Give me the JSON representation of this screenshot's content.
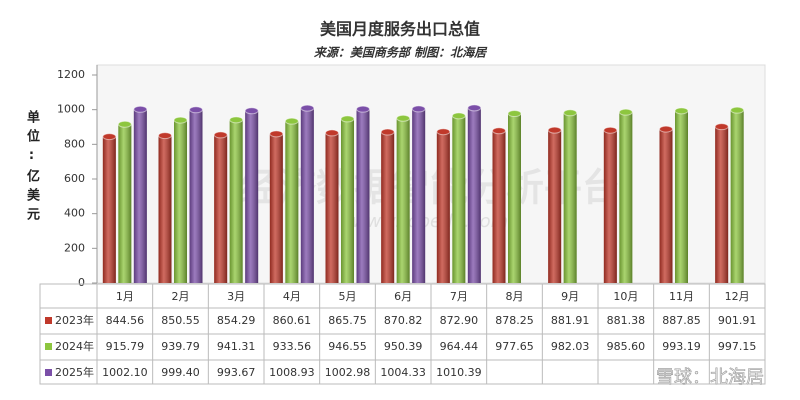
{
  "chart_data": {
    "type": "bar",
    "title": "美国月度服务出口总值",
    "subtitle": "来源：美国商务部 制图：北海居",
    "y_label": "单位:亿美元",
    "watermarks": [
      "经济数据智能分析平台",
      "www.topedb.com",
      "雪球：北海居"
    ],
    "categories": [
      "1月",
      "2月",
      "3月",
      "4月",
      "5月",
      "6月",
      "7月",
      "8月",
      "9月",
      "10月",
      "11月",
      "12月"
    ],
    "series": [
      {
        "name": "2023年",
        "color": "#c0392b",
        "values": [
          844.56,
          850.55,
          854.29,
          860.61,
          865.75,
          870.82,
          872.9,
          878.25,
          881.91,
          881.38,
          887.85,
          901.91
        ],
        "value_labels": [
          "844.56",
          "850.55",
          "854.29",
          "860.61",
          "865.75",
          "870.82",
          "872.90",
          "878.25",
          "881.91",
          "881.38",
          "887.85",
          "901.91"
        ]
      },
      {
        "name": "2024年",
        "color": "#8dc63f",
        "values": [
          915.79,
          939.79,
          941.31,
          933.56,
          946.55,
          950.39,
          964.44,
          977.65,
          982.03,
          985.6,
          993.19,
          997.15
        ],
        "value_labels": [
          "915.79",
          "939.79",
          "941.31",
          "933.56",
          "946.55",
          "950.39",
          "964.44",
          "977.65",
          "982.03",
          "985.60",
          "993.19",
          "997.15"
        ]
      },
      {
        "name": "2025年",
        "color": "#7b4fa8",
        "values": [
          1002.1,
          999.4,
          993.67,
          1008.93,
          1002.98,
          1004.33,
          1010.39,
          null,
          null,
          null,
          null,
          null
        ],
        "value_labels": [
          "1002.10",
          "999.40",
          "993.67",
          "1008.93",
          "1002.98",
          "1004.33",
          "1010.39",
          null,
          null,
          null,
          null,
          null
        ]
      }
    ],
    "ylim": [
      0,
      1200
    ],
    "yticks": [
      0,
      200,
      400,
      600,
      800,
      1000,
      1200
    ],
    "grid": false
  }
}
